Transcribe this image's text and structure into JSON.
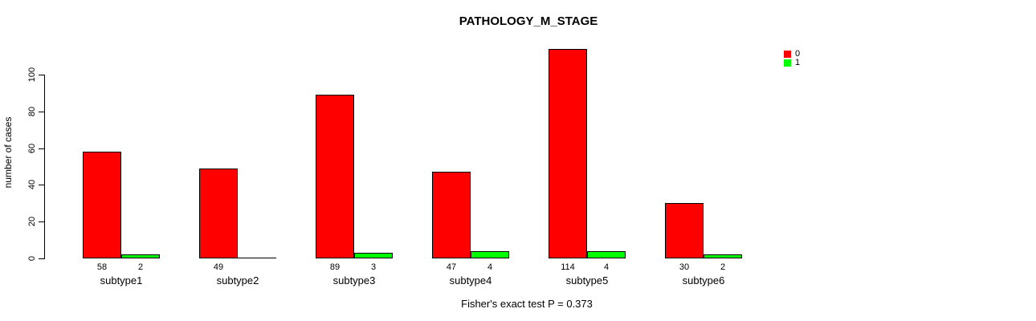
{
  "title": "PATHOLOGY_M_STAGE",
  "chart_data": {
    "type": "bar",
    "title": "PATHOLOGY_M_STAGE",
    "categories": [
      "subtype1",
      "subtype2",
      "subtype3",
      "subtype4",
      "subtype5",
      "subtype6"
    ],
    "series": [
      {
        "name": "0",
        "color": "#FF0000",
        "values": [
          58,
          49,
          89,
          47,
          114,
          30
        ]
      },
      {
        "name": "1",
        "color": "#00FF00",
        "values": [
          2,
          0,
          3,
          4,
          4,
          2
        ]
      }
    ],
    "ylabel": "number of cases",
    "xlabel": "",
    "y_ticks": [
      0,
      20,
      40,
      60,
      80,
      100
    ],
    "axis_max": 100,
    "ylim": [
      0,
      114
    ],
    "grid": false,
    "legend_position": "top-right",
    "bar_value_labels": "values printed below baseline under each bar; zero-value bars are unlabeled",
    "annotation": "Fisher's exact test P = 0.373"
  },
  "colors": {
    "bar_border": "#000000",
    "background": "#FFFFFF",
    "text": "#000000"
  }
}
